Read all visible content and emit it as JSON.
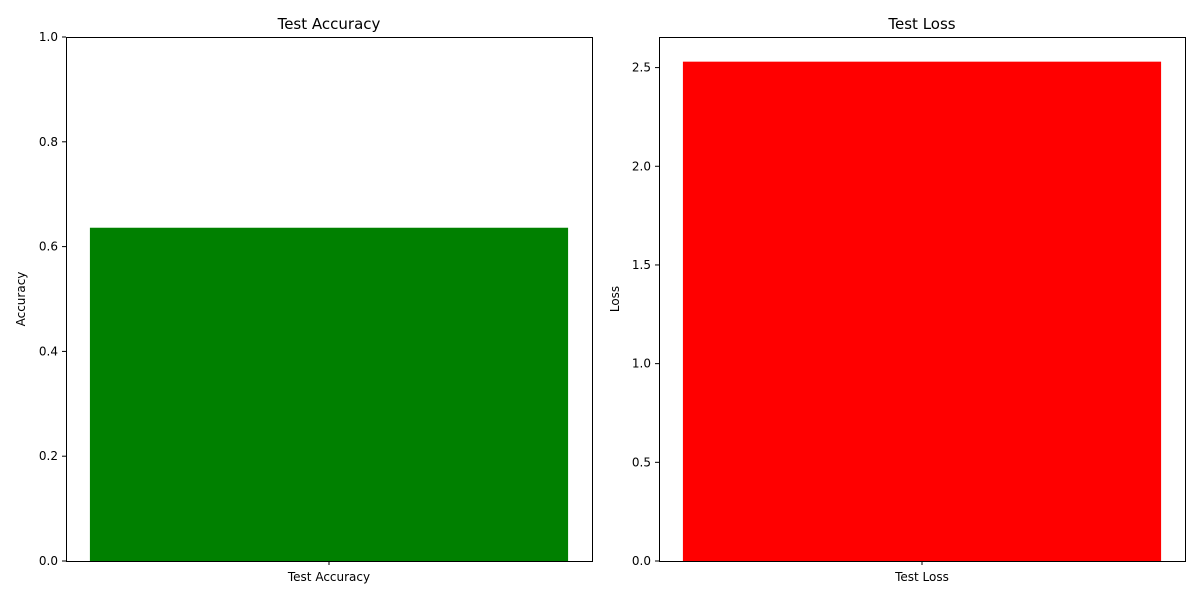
{
  "chart_data": [
    {
      "type": "bar",
      "title": "Test Accuracy",
      "xlabel": "",
      "ylabel": "Accuracy",
      "categories": [
        "Test Accuracy"
      ],
      "values": [
        0.636
      ],
      "ylim": [
        0,
        1.0
      ],
      "yticks": [
        0.0,
        0.2,
        0.4,
        0.6,
        0.8,
        1.0
      ],
      "ytick_labels": [
        "0.0",
        "0.2",
        "0.4",
        "0.6",
        "0.8",
        "1.0"
      ],
      "color": "#008000",
      "grid": false
    },
    {
      "type": "bar",
      "title": "Test Loss",
      "xlabel": "",
      "ylabel": "Loss",
      "categories": [
        "Test Loss"
      ],
      "values": [
        2.53
      ],
      "ylim": [
        0,
        2.655
      ],
      "yticks": [
        0.0,
        0.5,
        1.0,
        1.5,
        2.0,
        2.5
      ],
      "ytick_labels": [
        "0.0",
        "0.5",
        "1.0",
        "1.5",
        "2.0",
        "2.5"
      ],
      "color": "#ff0000",
      "grid": false
    }
  ]
}
